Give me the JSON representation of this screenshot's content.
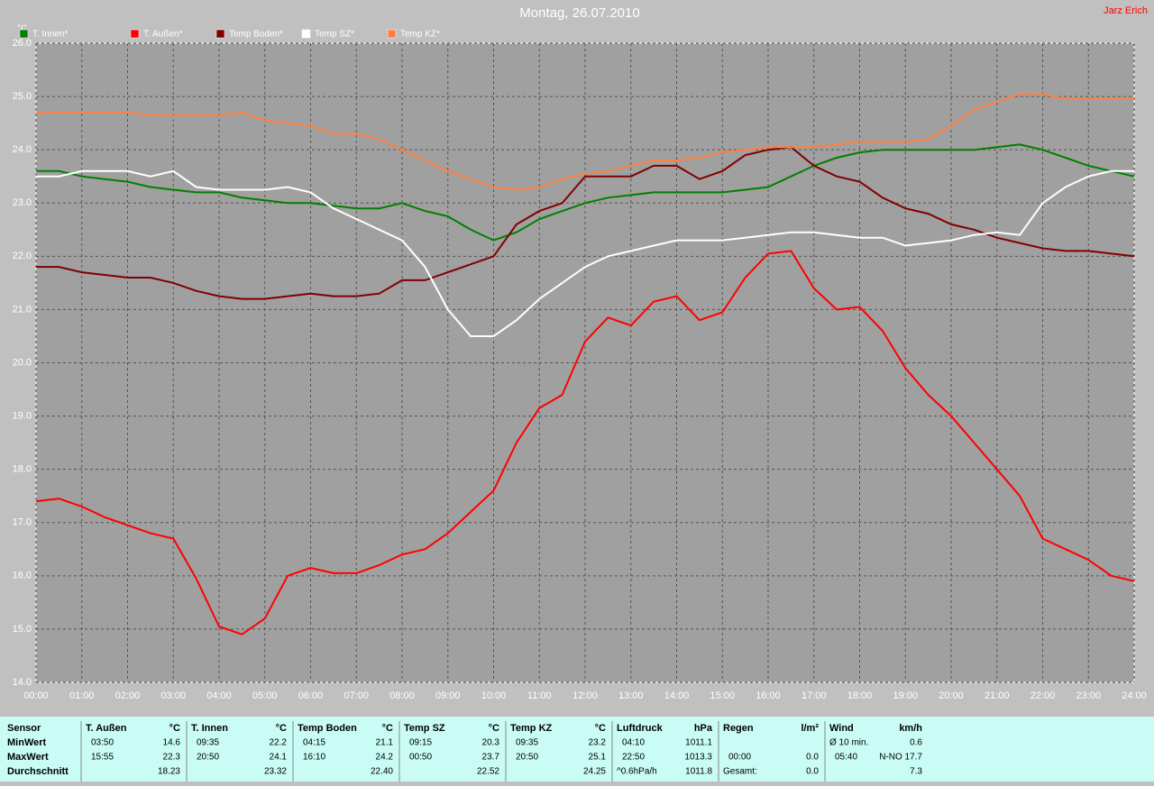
{
  "chart_data": {
    "type": "line",
    "title": "Montag, 26.07.2010",
    "author": "Jarz Erich",
    "y_label": "°C",
    "grid": true,
    "xlim": [
      0,
      24
    ],
    "ylim": [
      14,
      26
    ],
    "xticks": [
      {
        "value": 0,
        "label": "00:00"
      },
      {
        "value": 1,
        "label": "01:00"
      },
      {
        "value": 2,
        "label": "02:00"
      },
      {
        "value": 3,
        "label": "03:00"
      },
      {
        "value": 4,
        "label": "04:00"
      },
      {
        "value": 5,
        "label": "05:00"
      },
      {
        "value": 6,
        "label": "06:00"
      },
      {
        "value": 7,
        "label": "07:00"
      },
      {
        "value": 8,
        "label": "08:00"
      },
      {
        "value": 9,
        "label": "09:00"
      },
      {
        "value": 10,
        "label": "10:00"
      },
      {
        "value": 11,
        "label": "11:00"
      },
      {
        "value": 12,
        "label": "12:00"
      },
      {
        "value": 13,
        "label": "13:00"
      },
      {
        "value": 14,
        "label": "14:00"
      },
      {
        "value": 15,
        "label": "15:00"
      },
      {
        "value": 16,
        "label": "16:00"
      },
      {
        "value": 17,
        "label": "17:00"
      },
      {
        "value": 18,
        "label": "18:00"
      },
      {
        "value": 19,
        "label": "19:00"
      },
      {
        "value": 20,
        "label": "20:00"
      },
      {
        "value": 21,
        "label": "21:00"
      },
      {
        "value": 22,
        "label": "22:00"
      },
      {
        "value": 23,
        "label": "23:00"
      },
      {
        "value": 24,
        "label": "24:00"
      }
    ],
    "yticks": [
      {
        "value": 14,
        "label": "14.0"
      },
      {
        "value": 15,
        "label": "15.0"
      },
      {
        "value": 16,
        "label": "16.0"
      },
      {
        "value": 17,
        "label": "17.0"
      },
      {
        "value": 18,
        "label": "18.0"
      },
      {
        "value": 19,
        "label": "19.0"
      },
      {
        "value": 20,
        "label": "20.0"
      },
      {
        "value": 21,
        "label": "21.0"
      },
      {
        "value": 22,
        "label": "22.0"
      },
      {
        "value": 23,
        "label": "23.0"
      },
      {
        "value": 24,
        "label": "24.0"
      },
      {
        "value": 25,
        "label": "25.0"
      },
      {
        "value": 26,
        "label": "26.0"
      }
    ],
    "x": [
      0,
      0.5,
      1,
      1.5,
      2,
      2.5,
      3,
      3.5,
      4,
      4.5,
      5,
      5.5,
      6,
      6.5,
      7,
      7.5,
      8,
      8.5,
      9,
      9.5,
      10,
      10.5,
      11,
      11.5,
      12,
      12.5,
      13,
      13.5,
      14,
      14.5,
      15,
      15.5,
      16,
      16.5,
      17,
      17.5,
      18,
      18.5,
      19,
      19.5,
      20,
      20.5,
      21,
      21.5,
      22,
      22.5,
      23,
      23.5,
      24
    ],
    "series": [
      {
        "name": "T. Innen*",
        "color": "#008000",
        "values": [
          23.6,
          23.6,
          23.5,
          23.45,
          23.4,
          23.3,
          23.25,
          23.2,
          23.2,
          23.1,
          23.05,
          23.0,
          23.0,
          22.95,
          22.9,
          22.9,
          23.0,
          22.85,
          22.75,
          22.5,
          22.3,
          22.45,
          22.7,
          22.85,
          23.0,
          23.1,
          23.15,
          23.2,
          23.2,
          23.2,
          23.2,
          23.25,
          23.3,
          23.5,
          23.7,
          23.85,
          23.95,
          24.0,
          24.0,
          24.0,
          24.0,
          24.0,
          24.05,
          24.1,
          24.0,
          23.85,
          23.7,
          23.6,
          23.5
        ]
      },
      {
        "name": "T. Außen*",
        "color": "#ff0000",
        "values": [
          17.4,
          17.45,
          17.3,
          17.1,
          16.95,
          16.8,
          16.7,
          15.95,
          15.05,
          14.9,
          15.2,
          16.0,
          16.15,
          16.05,
          16.05,
          16.2,
          16.4,
          16.5,
          16.8,
          17.2,
          17.6,
          18.5,
          19.15,
          19.4,
          20.4,
          20.85,
          20.7,
          21.15,
          21.25,
          20.8,
          20.95,
          21.6,
          22.05,
          22.1,
          21.4,
          21.0,
          21.05,
          20.6,
          19.9,
          19.4,
          19.0,
          18.5,
          18.0,
          17.5,
          16.7,
          16.5,
          16.3,
          16.0,
          15.9
        ]
      },
      {
        "name": "Temp Boden*",
        "color": "#800000",
        "values": [
          21.8,
          21.8,
          21.7,
          21.65,
          21.6,
          21.6,
          21.5,
          21.35,
          21.25,
          21.2,
          21.2,
          21.25,
          21.3,
          21.25,
          21.25,
          21.3,
          21.55,
          21.55,
          21.7,
          21.85,
          22.0,
          22.6,
          22.85,
          23.0,
          23.5,
          23.5,
          23.5,
          23.7,
          23.7,
          23.45,
          23.6,
          23.9,
          24.0,
          24.05,
          23.7,
          23.5,
          23.4,
          23.1,
          22.9,
          22.8,
          22.6,
          22.5,
          22.35,
          22.25,
          22.15,
          22.1,
          22.1,
          22.05,
          22.0
        ]
      },
      {
        "name": "Temp SZ*",
        "color": "#ffffff",
        "values": [
          23.5,
          23.5,
          23.6,
          23.6,
          23.6,
          23.5,
          23.6,
          23.3,
          23.25,
          23.25,
          23.25,
          23.3,
          23.2,
          22.9,
          22.7,
          22.5,
          22.3,
          21.8,
          21.0,
          20.5,
          20.5,
          20.8,
          21.2,
          21.5,
          21.8,
          22.0,
          22.1,
          22.2,
          22.3,
          22.3,
          22.3,
          22.35,
          22.4,
          22.45,
          22.45,
          22.4,
          22.35,
          22.35,
          22.2,
          22.25,
          22.3,
          22.4,
          22.45,
          22.4,
          23.0,
          23.3,
          23.5,
          23.6,
          23.6
        ]
      },
      {
        "name": "Temp KZ*",
        "color": "#ff8040",
        "values": [
          24.7,
          24.7,
          24.7,
          24.7,
          24.7,
          24.65,
          24.65,
          24.65,
          24.65,
          24.7,
          24.55,
          24.5,
          24.45,
          24.3,
          24.3,
          24.2,
          24.0,
          23.8,
          23.6,
          23.45,
          23.3,
          23.25,
          23.3,
          23.45,
          23.55,
          23.6,
          23.7,
          23.8,
          23.8,
          23.85,
          23.95,
          24.0,
          24.05,
          24.05,
          24.05,
          24.1,
          24.15,
          24.15,
          24.15,
          24.2,
          24.45,
          24.75,
          24.9,
          25.05,
          25.05,
          24.95,
          24.95,
          24.95,
          24.95
        ]
      }
    ]
  },
  "table": {
    "sensor_label": "Sensor",
    "columns": [
      {
        "name": "T. Außen",
        "unit": "°C"
      },
      {
        "name": "T. Innen",
        "unit": "°C"
      },
      {
        "name": "Temp Boden",
        "unit": "°C"
      },
      {
        "name": "Temp SZ",
        "unit": "°C"
      },
      {
        "name": "Temp KZ",
        "unit": "°C"
      },
      {
        "name": "Luftdruck",
        "unit": "hPa"
      },
      {
        "name": "Regen",
        "unit": "l/m²"
      },
      {
        "name": "Wind",
        "unit": "km/h"
      }
    ],
    "rows": [
      {
        "label": "MinWert",
        "cells": [
          {
            "time": "03:50",
            "value": "14.6"
          },
          {
            "time": "09:35",
            "value": "22.2"
          },
          {
            "time": "04:15",
            "value": "21.1"
          },
          {
            "time": "09:15",
            "value": "20.3"
          },
          {
            "time": "09:35",
            "value": "23.2"
          },
          {
            "time": "04:10",
            "value": "1011.1"
          },
          {},
          {
            "time": "Ø 10 min.",
            "value": "0.6"
          }
        ]
      },
      {
        "label": "MaxWert",
        "cells": [
          {
            "time": "15:55",
            "value": "22.3"
          },
          {
            "time": "20:50",
            "value": "24.1"
          },
          {
            "time": "16:10",
            "value": "24.2"
          },
          {
            "time": "00:50",
            "value": "23.7"
          },
          {
            "time": "20:50",
            "value": "25.1"
          },
          {
            "time": "22:50",
            "value": "1013.3"
          },
          {
            "time": "00:00",
            "value": "0.0"
          },
          {
            "time": "05:40",
            "value": "N-NO 17.7"
          }
        ]
      },
      {
        "label": "Durchschnitt",
        "cells": [
          {
            "value": "18.23"
          },
          {
            "value": "23.32"
          },
          {
            "value": "22.40"
          },
          {
            "value": "22.52"
          },
          {
            "value": "24.25"
          },
          {
            "time": "^0.6hPa/h",
            "value": "1011.8"
          },
          {
            "time": "Gesamt:",
            "value": "0.0"
          },
          {
            "value": "7.3"
          }
        ]
      }
    ]
  }
}
